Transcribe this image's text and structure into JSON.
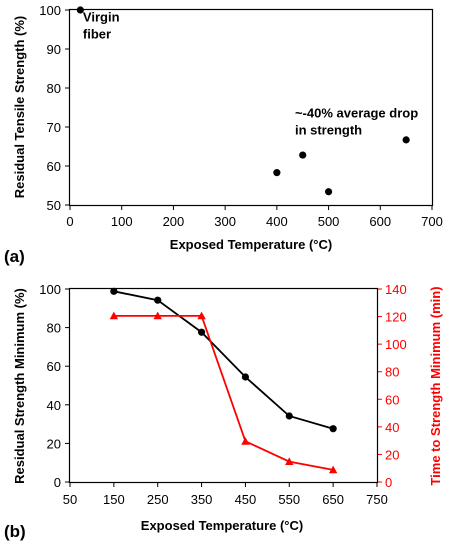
{
  "chart_data": [
    {
      "panel_label": "(a)",
      "type": "scatter",
      "xlabel": "Exposed Temperature (°C)",
      "ylabel": "Residual Tensile Strength (%)",
      "xlim": [
        0,
        700
      ],
      "ylim": [
        50,
        100
      ],
      "xticks": [
        0,
        100,
        200,
        300,
        400,
        500,
        600,
        700
      ],
      "yticks": [
        50,
        60,
        70,
        80,
        90,
        100
      ],
      "grid": false,
      "series": [
        {
          "x": [
            20,
            400,
            450,
            500,
            650
          ],
          "y": [
            100,
            58.3,
            62.8,
            53.4,
            66.7
          ],
          "color": "#000000",
          "marker": "circle"
        }
      ],
      "annotations": [
        {
          "lines": [
            "Virgin",
            "fiber"
          ],
          "x": 25,
          "y": 97
        },
        {
          "lines": [
            "~-40% average drop",
            "in strength"
          ],
          "x": 435,
          "y": 72.5
        }
      ]
    },
    {
      "panel_label": "(b)",
      "type": "line",
      "xlabel": "Exposed Temperature (°C)",
      "ylabel": "Residual Strength Minimum (%)",
      "y2label": "Time to Strength Minimum (min)",
      "xlim": [
        50,
        750
      ],
      "ylim": [
        0,
        100
      ],
      "y2lim": [
        0,
        140
      ],
      "xticks": [
        50,
        150,
        250,
        350,
        450,
        550,
        650,
        750
      ],
      "yticks": [
        0,
        20,
        40,
        60,
        80,
        100
      ],
      "y2ticks": [
        0,
        20,
        40,
        60,
        80,
        100,
        120,
        140
      ],
      "grid": false,
      "series": [
        {
          "axis": "left",
          "color": "#000000",
          "marker": "circle",
          "x": [
            150,
            250,
            350,
            450,
            550,
            650
          ],
          "y": [
            98.8,
            94.2,
            77.6,
            54.4,
            34.2,
            27.6
          ]
        },
        {
          "axis": "right",
          "color": "#ff0000",
          "marker": "triangle",
          "x": [
            150,
            250,
            350,
            450,
            550,
            650
          ],
          "y": [
            120.5,
            120.5,
            120.5,
            29.5,
            14.8,
            8.8
          ]
        }
      ]
    }
  ]
}
